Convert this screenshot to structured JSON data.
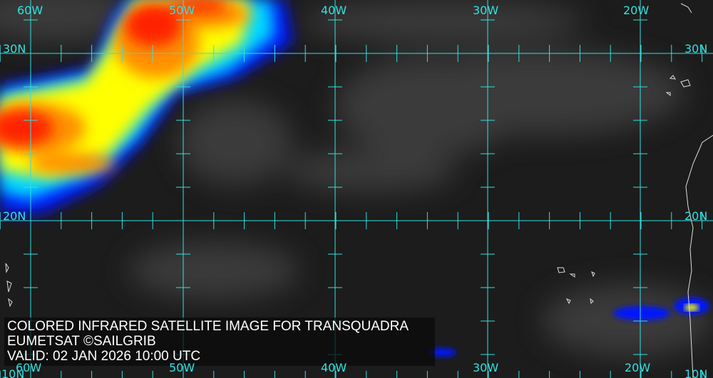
{
  "caption": {
    "title": "COLORED INFRARED SATELLITE IMAGE FOR TRANSQUADRA",
    "source": "EUMETSAT ©SAILGRIB",
    "valid": "VALID:  02 JAN 2026 10:00 UTC"
  },
  "grid": {
    "longitudes_top": [
      "60W",
      "50W",
      "40W",
      "30W",
      "20W"
    ],
    "longitudes_bottom": [
      "60W",
      "50W",
      "40W",
      "30W",
      "20W"
    ],
    "latitudes_left": [
      "30N",
      "20N",
      "10N"
    ],
    "latitudes_right": [
      "30N",
      "20N",
      "10N"
    ],
    "line_color": "#33e0e0"
  },
  "colors": {
    "cold_top_red": "#ff2000",
    "orange": "#ff9000",
    "yellow": "#ffff00",
    "cyan": "#00e0ff",
    "blue": "#0010ff",
    "ocean": "#1c1c1c"
  }
}
